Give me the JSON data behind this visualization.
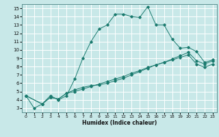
{
  "title": "",
  "xlabel": "Humidex (Indice chaleur)",
  "ylabel": "",
  "background_color": "#c8e8e8",
  "grid_color": "#ffffff",
  "line_color": "#1a7a6e",
  "xlim": [
    -0.5,
    23.5
  ],
  "ylim": [
    2.5,
    15.5
  ],
  "xticks": [
    0,
    1,
    2,
    3,
    4,
    5,
    6,
    7,
    8,
    9,
    10,
    11,
    12,
    13,
    14,
    15,
    16,
    17,
    18,
    19,
    20,
    21,
    22,
    23
  ],
  "yticks": [
    3,
    4,
    5,
    6,
    7,
    8,
    9,
    10,
    11,
    12,
    13,
    14,
    15
  ],
  "series1_x": [
    0,
    1,
    2,
    3,
    4,
    5,
    6,
    7,
    8,
    9,
    10,
    11,
    12,
    13,
    14,
    15,
    16,
    17,
    18,
    19,
    20,
    21,
    22,
    23
  ],
  "series1_y": [
    4.5,
    3.0,
    3.5,
    4.5,
    4.0,
    4.5,
    6.5,
    9.0,
    11.0,
    12.5,
    13.0,
    14.3,
    14.3,
    14.0,
    13.9,
    15.2,
    13.0,
    13.0,
    11.3,
    10.2,
    10.3,
    9.8,
    8.5,
    8.8
  ],
  "series2_x": [
    0,
    2,
    3,
    4,
    5,
    6,
    7,
    8,
    9,
    10,
    11,
    12,
    13,
    14,
    15,
    16,
    17,
    18,
    19,
    20,
    21,
    22,
    23
  ],
  "series2_y": [
    4.5,
    3.5,
    4.3,
    4.1,
    4.8,
    5.2,
    5.5,
    5.7,
    5.8,
    6.0,
    6.3,
    6.6,
    7.0,
    7.4,
    7.8,
    8.2,
    8.5,
    8.9,
    9.3,
    9.7,
    8.7,
    8.3,
    8.7
  ],
  "series3_x": [
    0,
    2,
    3,
    4,
    5,
    6,
    7,
    8,
    9,
    10,
    11,
    12,
    13,
    14,
    15,
    16,
    17,
    18,
    19,
    20,
    21,
    22,
    23
  ],
  "series3_y": [
    4.5,
    3.5,
    4.3,
    4.1,
    4.8,
    5.0,
    5.3,
    5.6,
    5.9,
    6.2,
    6.5,
    6.8,
    7.2,
    7.5,
    7.9,
    8.2,
    8.5,
    8.8,
    9.1,
    9.4,
    8.3,
    7.9,
    8.3
  ]
}
